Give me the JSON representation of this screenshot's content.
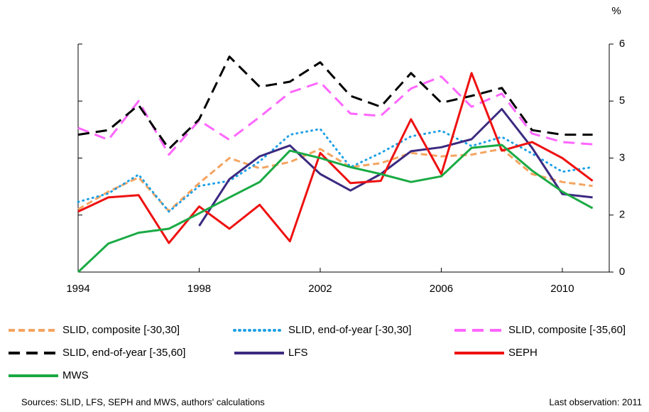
{
  "chart_data": {
    "type": "line",
    "unit": "%",
    "x": [
      1994,
      1995,
      1996,
      1997,
      1998,
      1999,
      2000,
      2001,
      2002,
      2003,
      2004,
      2005,
      2006,
      2007,
      2008,
      2009,
      2010,
      2011
    ],
    "xlim": [
      1994,
      2011.55
    ],
    "xticks": [
      1994,
      1998,
      2002,
      2006,
      2010
    ],
    "ylim": [
      2,
      6
    ],
    "yticks": [
      {
        "value": 2,
        "label": "0"
      },
      {
        "value": 3,
        "label": "2"
      },
      {
        "value": 4,
        "label": "3"
      },
      5,
      6
    ],
    "series": [
      {
        "name": "SLID, composite [-30,30]",
        "color": "#f4a460",
        "dash": "9,5",
        "values": [
          3.1,
          3.41,
          3.66,
          3.07,
          3.56,
          4.0,
          3.82,
          3.93,
          4.16,
          3.84,
          3.91,
          4.09,
          4.03,
          4.06,
          4.16,
          3.72,
          3.58,
          3.51
        ]
      },
      {
        "name": "SLID, end-of-year [-30,30]",
        "color": "#1ea0e6",
        "dash": "1,6",
        "values": [
          3.23,
          3.38,
          3.71,
          3.06,
          3.51,
          3.6,
          3.94,
          4.41,
          4.51,
          3.84,
          4.09,
          4.38,
          4.48,
          4.21,
          4.37,
          4.08,
          3.76,
          3.84
        ]
      },
      {
        "name": "SLID, composite [-35,60]",
        "color": "#ff66ff",
        "dash": "16,9",
        "values": [
          4.53,
          4.32,
          5.0,
          4.06,
          4.66,
          4.32,
          4.72,
          5.15,
          5.33,
          4.78,
          4.74,
          5.22,
          5.43,
          4.9,
          5.13,
          4.43,
          4.28,
          4.24
        ]
      },
      {
        "name": "SLID, end-of-year [-35,60]",
        "color": "#000000",
        "dash": "16,9",
        "values": [
          4.41,
          4.49,
          4.93,
          4.16,
          4.68,
          5.78,
          5.25,
          5.34,
          5.68,
          5.09,
          4.9,
          5.49,
          4.97,
          5.09,
          5.23,
          4.49,
          4.41,
          4.41
        ]
      },
      {
        "name": "LFS",
        "color": "#3c2a80",
        "dash": "none",
        "values": [
          null,
          null,
          null,
          null,
          2.81,
          3.63,
          4.03,
          4.22,
          3.72,
          3.43,
          3.72,
          4.12,
          4.19,
          4.33,
          4.86,
          4.18,
          3.37,
          3.31
        ]
      },
      {
        "name": "SEPH",
        "color": "#ee1111",
        "dash": "none",
        "values": [
          3.06,
          3.31,
          3.35,
          2.51,
          3.15,
          2.76,
          3.18,
          2.54,
          4.09,
          3.56,
          3.6,
          4.68,
          3.72,
          5.49,
          4.13,
          4.28,
          4.0,
          3.6
        ]
      },
      {
        "name": "MWS",
        "color": "#1aaa44",
        "dash": "none",
        "values": [
          2.0,
          2.5,
          2.69,
          2.76,
          3.03,
          3.31,
          3.58,
          4.13,
          4.0,
          3.84,
          3.72,
          3.58,
          3.68,
          4.18,
          4.23,
          3.78,
          3.41,
          3.12
        ]
      }
    ],
    "source": "Sources: SLID, LFS, SEPH and MWS, authors' calculations",
    "note": "Last observation: 2011"
  }
}
